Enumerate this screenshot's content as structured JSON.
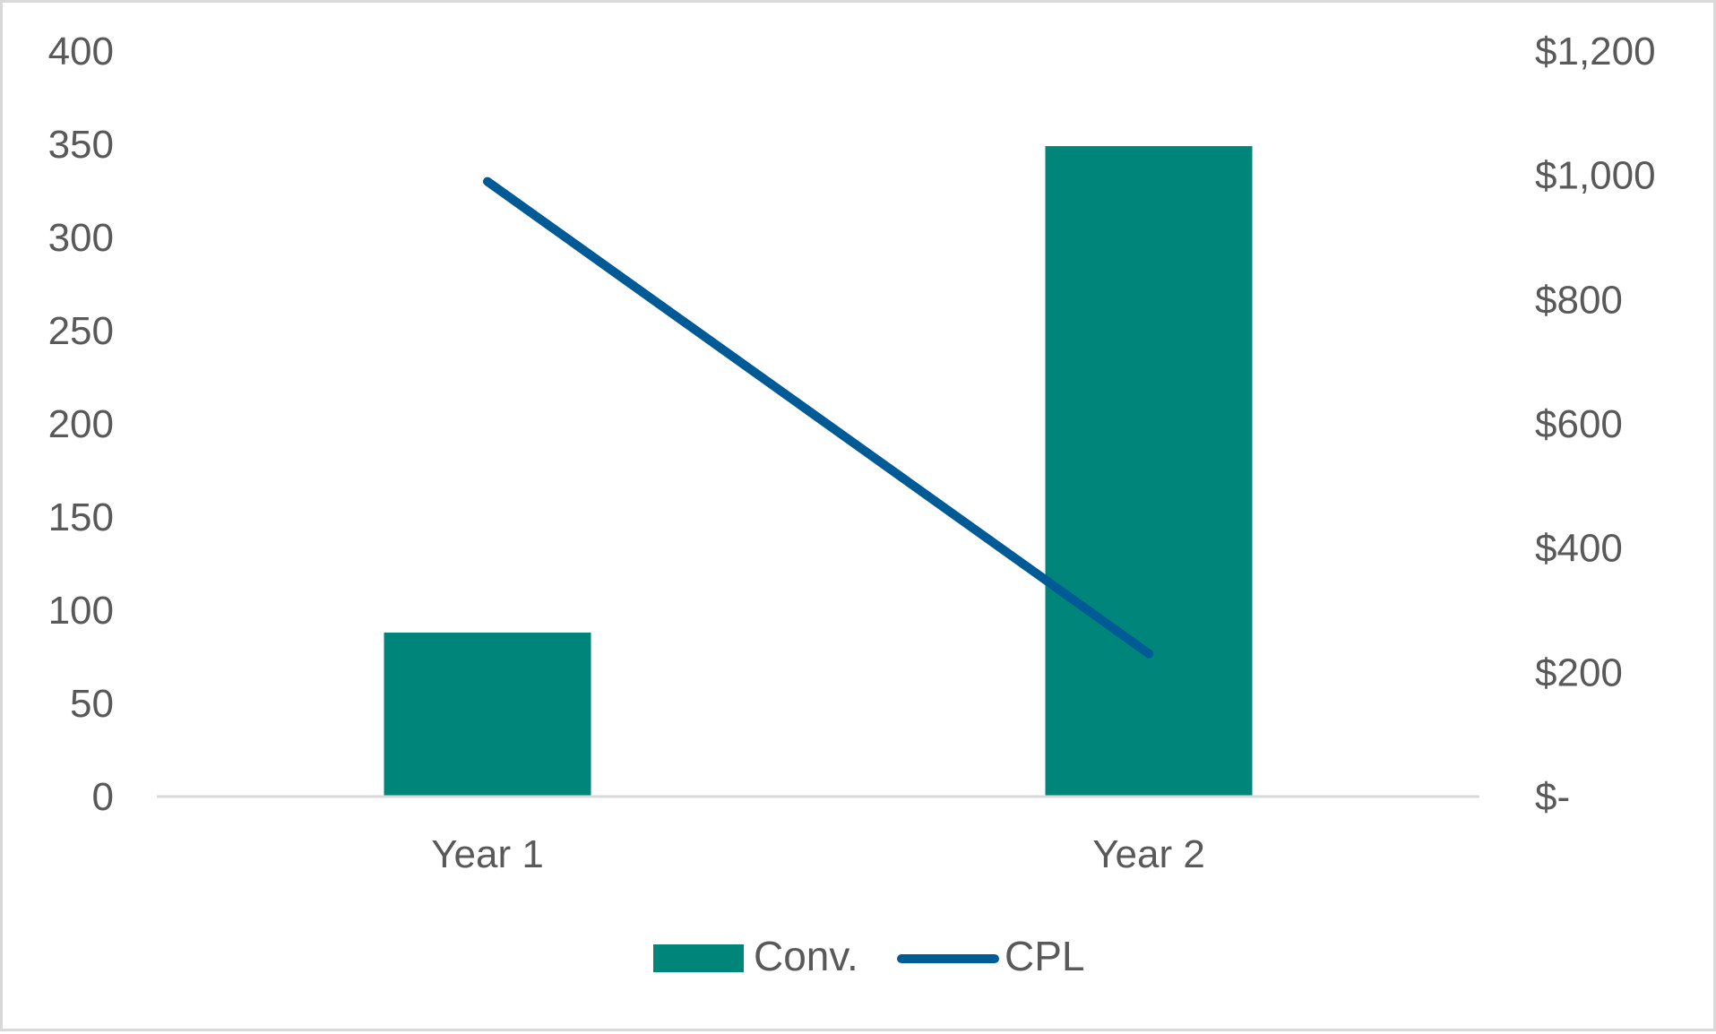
{
  "chart_data": {
    "type": "bar",
    "categories": [
      "Year 1",
      "Year 2"
    ],
    "series": [
      {
        "name": "Conv.",
        "type": "bar",
        "axis": "left",
        "color": "#00857a",
        "values": [
          88,
          349
        ]
      },
      {
        "name": "CPL",
        "type": "line",
        "axis": "right",
        "color": "#005a96",
        "values": [
          990,
          230
        ]
      }
    ],
    "left_axis": {
      "ylim": [
        0,
        400
      ],
      "ticks": [
        0,
        50,
        100,
        150,
        200,
        250,
        300,
        350,
        400
      ],
      "tick_labels": [
        "0",
        "50",
        "100",
        "150",
        "200",
        "250",
        "300",
        "350",
        "400"
      ]
    },
    "right_axis": {
      "ylim": [
        0,
        1200
      ],
      "ticks": [
        0,
        200,
        400,
        600,
        800,
        1000,
        1200
      ],
      "tick_labels": [
        "$-",
        "$200",
        "$400",
        "$600",
        "$800",
        "$1,000",
        "$1,200"
      ]
    },
    "title": "",
    "xlabel": "",
    "ylabel": "",
    "grid": false,
    "legend_position": "bottom"
  }
}
